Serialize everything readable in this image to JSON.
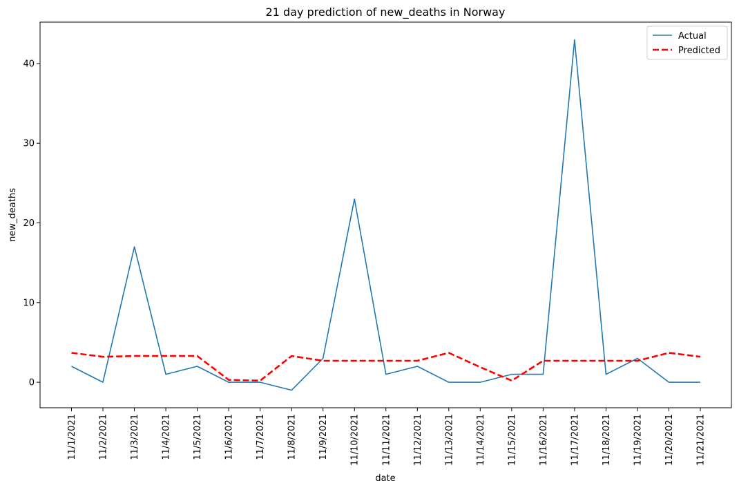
{
  "chart_data": {
    "type": "line",
    "title": "21 day prediction of new_deaths in Norway",
    "xlabel": "date",
    "ylabel": "new_deaths",
    "categories": [
      "11/1/2021",
      "11/2/2021",
      "11/3/2021",
      "11/4/2021",
      "11/5/2021",
      "11/6/2021",
      "11/7/2021",
      "11/8/2021",
      "11/9/2021",
      "11/10/2021",
      "11/11/2021",
      "11/12/2021",
      "11/13/2021",
      "11/14/2021",
      "11/15/2021",
      "11/16/2021",
      "11/17/2021",
      "11/18/2021",
      "11/19/2021",
      "11/20/2021",
      "11/21/2021"
    ],
    "ylim": [
      -3.2,
      45.2
    ],
    "yticks": [
      0,
      10,
      20,
      30,
      40
    ],
    "grid": false,
    "legend": "top-right",
    "series": [
      {
        "name": "Actual",
        "color": "#1f77b4",
        "style": "solid",
        "values": [
          2,
          0,
          17,
          1,
          2,
          0,
          0,
          -1,
          3,
          23,
          1,
          2,
          0,
          0,
          1,
          1,
          43,
          1,
          3,
          0,
          0
        ]
      },
      {
        "name": "Predicted",
        "color": "#ff0000",
        "style": "dashed",
        "values": [
          3.7,
          3.2,
          3.3,
          3.3,
          3.3,
          0.3,
          0.2,
          3.3,
          2.7,
          2.7,
          2.7,
          2.7,
          3.7,
          1.9,
          0.2,
          2.7,
          2.7,
          2.7,
          2.7,
          3.7,
          3.2
        ]
      }
    ]
  }
}
